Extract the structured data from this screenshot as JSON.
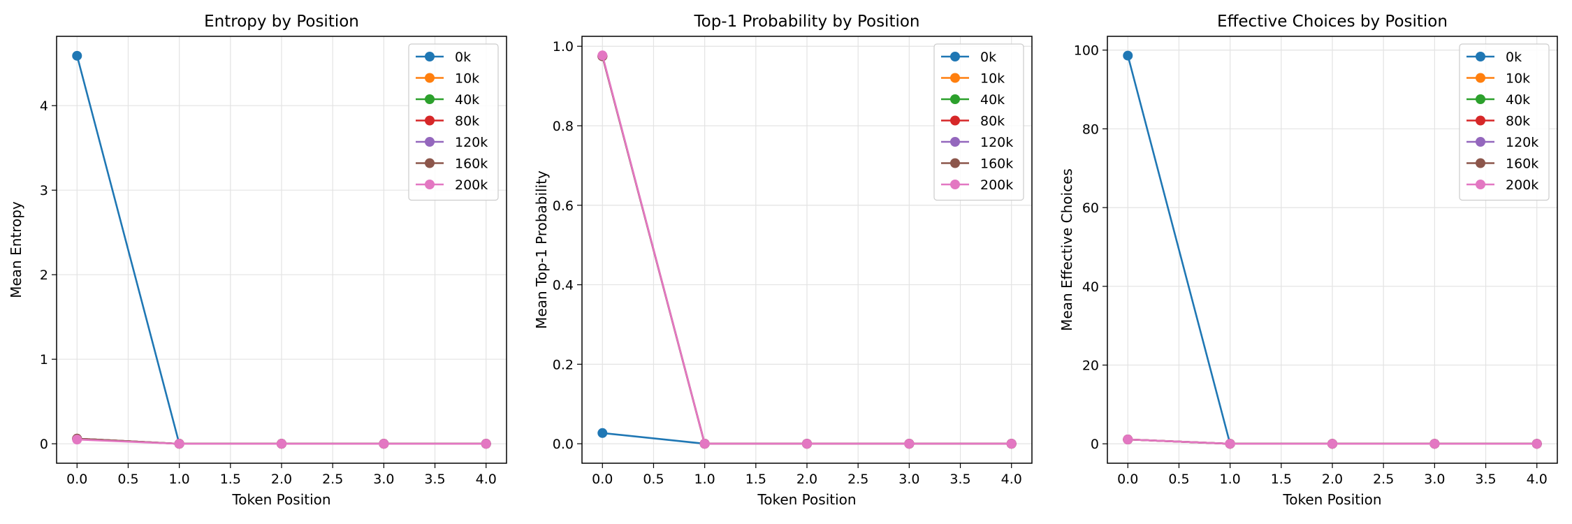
{
  "chart_data": [
    {
      "type": "line",
      "title": "Entropy by Position",
      "xlabel": "Token Position",
      "ylabel": "Mean Entropy",
      "xlim": [
        -0.2,
        4.2
      ],
      "ylim": [
        -0.23,
        4.82
      ],
      "xticks": [
        "0.0",
        "0.5",
        "1.0",
        "1.5",
        "2.0",
        "2.5",
        "3.0",
        "3.5",
        "4.0"
      ],
      "yticks": [
        "0",
        "1",
        "2",
        "3",
        "4"
      ],
      "grid": true,
      "legend": "upper-right",
      "x": [
        0,
        1,
        2,
        3,
        4
      ],
      "series": [
        {
          "name": "0k",
          "color": "#1f77b4",
          "values": [
            4.59,
            0,
            0,
            0,
            0
          ]
        },
        {
          "name": "10k",
          "color": "#ff7f0e",
          "values": [
            0.06,
            0,
            0,
            0,
            0
          ]
        },
        {
          "name": "40k",
          "color": "#2ca02c",
          "values": [
            0.06,
            0,
            0,
            0,
            0
          ]
        },
        {
          "name": "80k",
          "color": "#d62728",
          "values": [
            0.06,
            0,
            0,
            0,
            0
          ]
        },
        {
          "name": "120k",
          "color": "#9467bd",
          "values": [
            0.06,
            0,
            0,
            0,
            0
          ]
        },
        {
          "name": "160k",
          "color": "#8c564b",
          "values": [
            0.06,
            0,
            0,
            0,
            0
          ]
        },
        {
          "name": "200k",
          "color": "#e377c2",
          "values": [
            0.05,
            0,
            0,
            0,
            0
          ]
        }
      ]
    },
    {
      "type": "line",
      "title": "Top-1 Probability by Position",
      "xlabel": "Token Position",
      "ylabel": "Mean Top-1 Probability",
      "xlim": [
        -0.2,
        4.2
      ],
      "ylim": [
        -0.049,
        1.025
      ],
      "xticks": [
        "0.0",
        "0.5",
        "1.0",
        "1.5",
        "2.0",
        "2.5",
        "3.0",
        "3.5",
        "4.0"
      ],
      "yticks": [
        "0.0",
        "0.2",
        "0.4",
        "0.6",
        "0.8",
        "1.0"
      ],
      "grid": true,
      "legend": "upper-right",
      "x": [
        0,
        1,
        2,
        3,
        4
      ],
      "series": [
        {
          "name": "0k",
          "color": "#1f77b4",
          "values": [
            0.027,
            0,
            0,
            0,
            0
          ]
        },
        {
          "name": "10k",
          "color": "#ff7f0e",
          "values": [
            0.975,
            0,
            0,
            0,
            0
          ]
        },
        {
          "name": "40k",
          "color": "#2ca02c",
          "values": [
            0.975,
            0,
            0,
            0,
            0
          ]
        },
        {
          "name": "80k",
          "color": "#d62728",
          "values": [
            0.975,
            0,
            0,
            0,
            0
          ]
        },
        {
          "name": "120k",
          "color": "#9467bd",
          "values": [
            0.975,
            0,
            0,
            0,
            0
          ]
        },
        {
          "name": "160k",
          "color": "#8c564b",
          "values": [
            0.975,
            0,
            0,
            0,
            0
          ]
        },
        {
          "name": "200k",
          "color": "#e377c2",
          "values": [
            0.977,
            0,
            0,
            0,
            0
          ]
        }
      ]
    },
    {
      "type": "line",
      "title": "Effective Choices by Position",
      "xlabel": "Token Position",
      "ylabel": "Mean Effective Choices",
      "xlim": [
        -0.2,
        4.2
      ],
      "ylim": [
        -4.93,
        103.5
      ],
      "xticks": [
        "0.0",
        "0.5",
        "1.0",
        "1.5",
        "2.0",
        "2.5",
        "3.0",
        "3.5",
        "4.0"
      ],
      "yticks": [
        "0",
        "20",
        "40",
        "60",
        "80",
        "100"
      ],
      "grid": true,
      "legend": "upper-right",
      "x": [
        0,
        1,
        2,
        3,
        4
      ],
      "series": [
        {
          "name": "0k",
          "color": "#1f77b4",
          "values": [
            98.6,
            0,
            0,
            0,
            0
          ]
        },
        {
          "name": "10k",
          "color": "#ff7f0e",
          "values": [
            1.1,
            0,
            0,
            0,
            0
          ]
        },
        {
          "name": "40k",
          "color": "#2ca02c",
          "values": [
            1.1,
            0,
            0,
            0,
            0
          ]
        },
        {
          "name": "80k",
          "color": "#d62728",
          "values": [
            1.1,
            0,
            0,
            0,
            0
          ]
        },
        {
          "name": "120k",
          "color": "#9467bd",
          "values": [
            1.1,
            0,
            0,
            0,
            0
          ]
        },
        {
          "name": "160k",
          "color": "#8c564b",
          "values": [
            1.1,
            0,
            0,
            0,
            0
          ]
        },
        {
          "name": "200k",
          "color": "#e377c2",
          "values": [
            1.1,
            0,
            0,
            0,
            0
          ]
        }
      ]
    }
  ]
}
